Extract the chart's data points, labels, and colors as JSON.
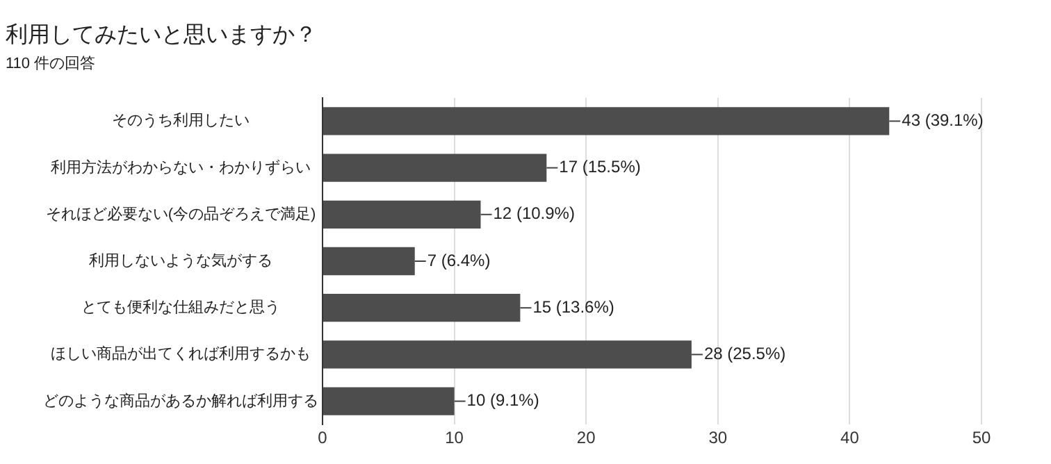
{
  "chart_data": {
    "type": "bar",
    "orientation": "horizontal",
    "title": "利用してみたいと思いますか？",
    "subtitle": "110 件の回答",
    "categories": [
      "そのうち利用したい",
      "利用方法がわからない・わかりずらい",
      "それほど必要ない(今の品ぞろえで満足)",
      "利用しないような気がする",
      "とても便利な仕組みだと思う",
      "ほしい商品が出てくれば利用するかも",
      "どのような商品があるか解れば利用する"
    ],
    "values": [
      43,
      17,
      12,
      7,
      15,
      28,
      10
    ],
    "value_labels": [
      "43 (39.1%)",
      "17 (15.5%)",
      "12 (10.9%)",
      "7 (6.4%)",
      "15 (13.6%)",
      "28 (25.5%)",
      "10 (9.1%)"
    ],
    "color": "#4d4d4d",
    "xlim": [
      0,
      50
    ],
    "xticks": [
      0,
      10,
      20,
      30,
      40,
      50
    ],
    "grid": "x"
  }
}
